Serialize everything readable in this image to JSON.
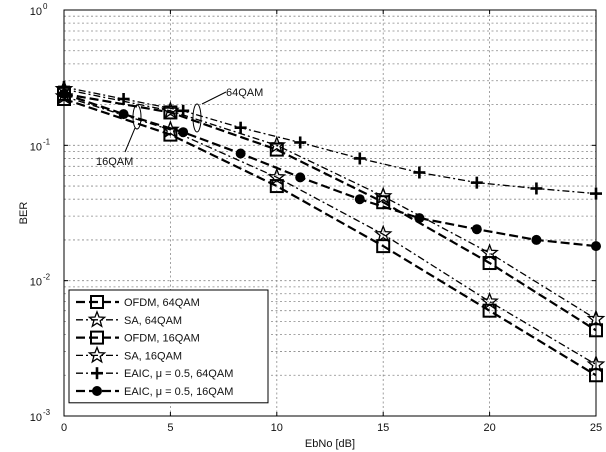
{
  "chart_data": {
    "type": "line",
    "title": "",
    "xlabel": "EbNo [dB]",
    "ylabel": "BER",
    "xlim": [
      0,
      25
    ],
    "ylim": [
      0.001,
      1
    ],
    "yscale": "log",
    "grid": true,
    "x_ticks": [
      "0",
      "5",
      "10",
      "15",
      "20",
      "25"
    ],
    "y_ticks": [
      {
        "base": "10",
        "exp": "0"
      },
      {
        "base": "10",
        "exp": "-1"
      },
      {
        "base": "10",
        "exp": "-2"
      },
      {
        "base": "10",
        "exp": "-3"
      }
    ],
    "legend_position": "bottom-left",
    "series": [
      {
        "name": "OFDM, 64QAM",
        "marker": "square",
        "dash": "dashed",
        "x": [
          0,
          5,
          10,
          15,
          20,
          25
        ],
        "y": [
          0.24,
          0.175,
          0.093,
          0.038,
          0.0135,
          0.0043
        ]
      },
      {
        "name": "SA, 64QAM",
        "marker": "star",
        "dash": "dashdot",
        "x": [
          0,
          5,
          10,
          15,
          20,
          25
        ],
        "y": [
          0.26,
          0.18,
          0.1,
          0.042,
          0.016,
          0.0052
        ]
      },
      {
        "name": "OFDM, 16QAM",
        "marker": "square",
        "dash": "dashed",
        "x": [
          0,
          5,
          10,
          15,
          20,
          25
        ],
        "y": [
          0.22,
          0.12,
          0.05,
          0.018,
          0.006,
          0.002
        ]
      },
      {
        "name": "SA, 16QAM",
        "marker": "star",
        "dash": "dashdot",
        "x": [
          0,
          5,
          10,
          15,
          20,
          25
        ],
        "y": [
          0.23,
          0.13,
          0.058,
          0.022,
          0.007,
          0.0024
        ]
      },
      {
        "name": "EAIC, μ = 0.5, 64QAM",
        "marker": "plus",
        "dash": "dashdot",
        "x": [
          0,
          2.8,
          5.6,
          8.3,
          11.1,
          13.9,
          16.7,
          19.4,
          22.2,
          25
        ],
        "y": [
          0.27,
          0.22,
          0.18,
          0.135,
          0.105,
          0.08,
          0.063,
          0.053,
          0.048,
          0.044
        ]
      },
      {
        "name": "EAIC, μ = 0.5, 16QAM",
        "marker": "circle",
        "dash": "dashed",
        "x": [
          0,
          2.8,
          5.6,
          8.3,
          11.1,
          13.9,
          16.7,
          19.4,
          22.2,
          25
        ],
        "y": [
          0.24,
          0.17,
          0.125,
          0.087,
          0.058,
          0.04,
          0.029,
          0.024,
          0.02,
          0.018
        ]
      }
    ],
    "annotations": [
      "64QAM",
      "16QAM"
    ]
  }
}
